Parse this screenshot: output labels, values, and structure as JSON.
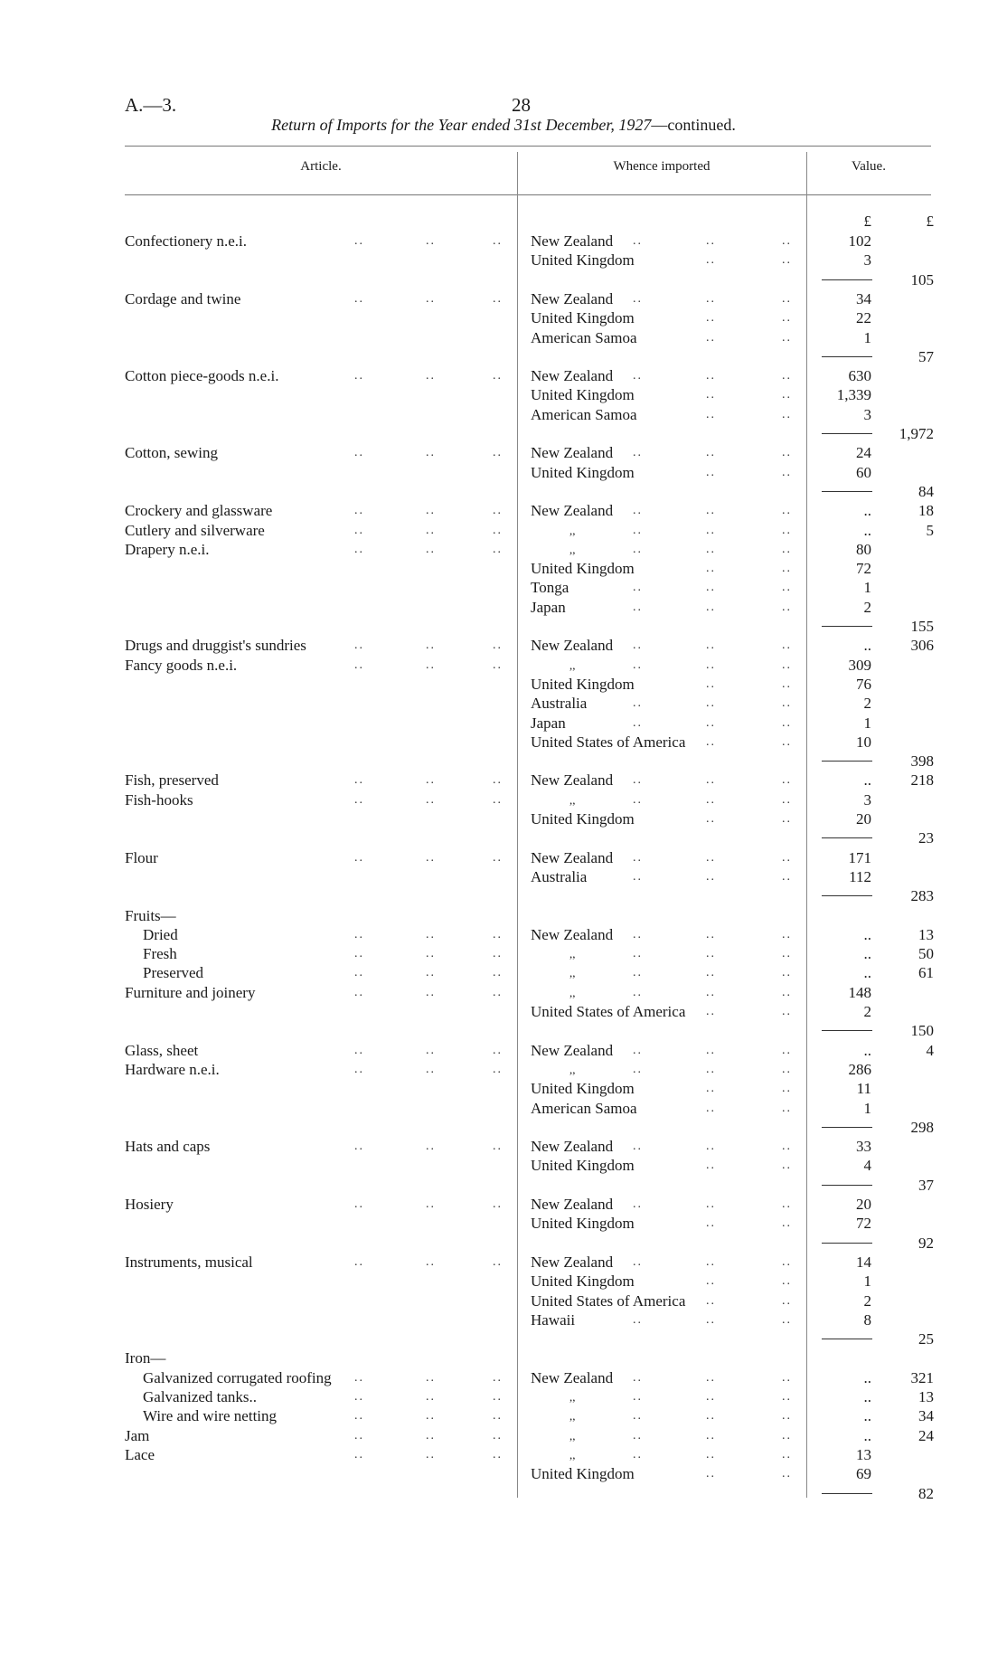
{
  "header": {
    "doc_id": "A.—3.",
    "page_number": "28",
    "title_italic": "Return of Imports for the Year ended 31st December, 1927",
    "title_suffix": "—continued."
  },
  "columns": {
    "article": "Article.",
    "whence": "Whence imported",
    "value": "Value.",
    "currency1": "£",
    "currency2": "£"
  },
  "rows": [
    {
      "a": "Confectionery n.e.i.",
      "s": "New Zealand",
      "v1": "102"
    },
    {
      "s": "United Kingdom",
      "v1": "3"
    },
    {
      "r": true,
      "v2": "105"
    },
    {
      "a": "Cordage and twine",
      "s": "New Zealand",
      "v1": "34"
    },
    {
      "s": "United Kingdom",
      "v1": "22"
    },
    {
      "s": "American Samoa",
      "v1": "1"
    },
    {
      "r": true,
      "v2": "57"
    },
    {
      "a": "Cotton piece-goods n.e.i.",
      "s": "New Zealand",
      "v1": "630"
    },
    {
      "s": "United Kingdom",
      "v1": "1,339"
    },
    {
      "s": "American Samoa",
      "v1": "3"
    },
    {
      "r": true,
      "v2": "1,972"
    },
    {
      "a": "Cotton, sewing",
      "s": "New Zealand",
      "v1": "24"
    },
    {
      "s": "United Kingdom",
      "v1": "60"
    },
    {
      "r": true,
      "v2": "84"
    },
    {
      "a": "Crockery and glassware",
      "s": "New Zealand",
      "v1": "..",
      "v2": "18"
    },
    {
      "a": "Cutlery and silverware",
      "s": ",,",
      "ditto": true,
      "v1": "..",
      "v2": "5"
    },
    {
      "a": "Drapery n.e.i.",
      "s": ",,",
      "ditto": true,
      "v1": "80"
    },
    {
      "s": "United Kingdom",
      "v1": "72"
    },
    {
      "s": "Tonga",
      "v1": "1"
    },
    {
      "s": "Japan",
      "v1": "2"
    },
    {
      "r": true,
      "v2": "155"
    },
    {
      "a": "Drugs and druggist's sundries",
      "s": "New Zealand",
      "v1": "..",
      "v2": "306"
    },
    {
      "a": "Fancy goods n.e.i.",
      "s": ",,",
      "ditto": true,
      "v1": "309"
    },
    {
      "s": "United Kingdom",
      "v1": "76"
    },
    {
      "s": "Australia",
      "v1": "2"
    },
    {
      "s": "Japan",
      "v1": "1"
    },
    {
      "s": "United States of America",
      "v1": "10"
    },
    {
      "r": true,
      "v2": "398"
    },
    {
      "a": "Fish, preserved",
      "s": "New Zealand",
      "v1": "..",
      "v2": "218"
    },
    {
      "a": "Fish-hooks",
      "s": ",,",
      "ditto": true,
      "v1": "3"
    },
    {
      "s": "United Kingdom",
      "v1": "20"
    },
    {
      "r": true,
      "v2": "23"
    },
    {
      "a": "Flour",
      "s": "New Zealand",
      "v1": "171"
    },
    {
      "s": "Australia",
      "v1": "112"
    },
    {
      "r": true,
      "v2": "283"
    },
    {
      "a": "Fruits—",
      "nodots": true
    },
    {
      "a": "Dried",
      "ind": true,
      "s": "New Zealand",
      "v1": "..",
      "v2": "13"
    },
    {
      "a": "Fresh",
      "ind": true,
      "s": ",,",
      "ditto": true,
      "v1": "..",
      "v2": "50"
    },
    {
      "a": "Preserved",
      "ind": true,
      "s": ",,",
      "ditto": true,
      "v1": "..",
      "v2": "61"
    },
    {
      "a": "Furniture and joinery",
      "s": ",,",
      "ditto": true,
      "v1": "148"
    },
    {
      "s": "United States of America",
      "v1": "2"
    },
    {
      "r": true,
      "v2": "150"
    },
    {
      "a": "Glass, sheet",
      "s": "New Zealand",
      "v1": "..",
      "v2": "4"
    },
    {
      "a": "Hardware n.e.i.",
      "s": ",,",
      "ditto": true,
      "v1": "286"
    },
    {
      "s": "United Kingdom",
      "v1": "11"
    },
    {
      "s": "American Samoa",
      "v1": "1"
    },
    {
      "r": true,
      "v2": "298"
    },
    {
      "a": "Hats and caps",
      "s": "New Zealand",
      "v1": "33"
    },
    {
      "s": "United Kingdom",
      "v1": "4"
    },
    {
      "r": true,
      "v2": "37"
    },
    {
      "a": "Hosiery",
      "s": "New Zealand",
      "v1": "20"
    },
    {
      "s": "United Kingdom",
      "v1": "72"
    },
    {
      "r": true,
      "v2": "92"
    },
    {
      "a": "Instruments, musical",
      "s": "New Zealand",
      "v1": "14"
    },
    {
      "s": "United Kingdom",
      "v1": "1"
    },
    {
      "s": "United States of America",
      "v1": "2"
    },
    {
      "s": "Hawaii",
      "v1": "8"
    },
    {
      "r": true,
      "v2": "25"
    },
    {
      "a": "Iron—",
      "nodots": true
    },
    {
      "a": "Galvanized corrugated roofing",
      "ind": true,
      "s": "New Zealand",
      "v1": "..",
      "v2": "321"
    },
    {
      "a": "Galvanized tanks..",
      "ind": true,
      "s": ",,",
      "ditto": true,
      "v1": "..",
      "v2": "13"
    },
    {
      "a": "Wire and wire netting",
      "ind": true,
      "s": ",,",
      "ditto": true,
      "v1": "..",
      "v2": "34"
    },
    {
      "a": "Jam",
      "s": ",,",
      "ditto": true,
      "v1": "..",
      "v2": "24"
    },
    {
      "a": "Lace",
      "s": ",,",
      "ditto": true,
      "v1": "13"
    },
    {
      "s": "United Kingdom",
      "v1": "69"
    },
    {
      "r": true,
      "v2": "82"
    }
  ]
}
